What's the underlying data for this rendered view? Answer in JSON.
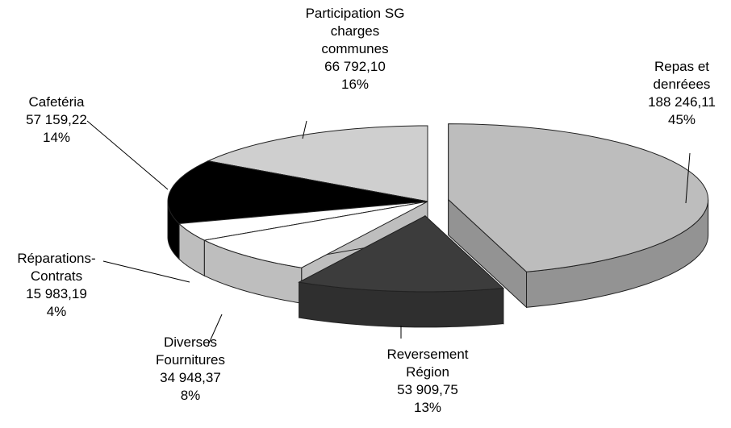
{
  "chart_data": {
    "type": "pie3d",
    "categories": [
      "Repas et\ndenréees",
      "Reversement\nRégion",
      "Diverses\nFournitures",
      "Réparations-\nContrats",
      "Cafetéria",
      "Participation SG\ncharges\ncommunes"
    ],
    "values": [
      188246.11,
      53909.75,
      34948.37,
      15983.19,
      57159.22,
      66792.1
    ],
    "value_labels": [
      "188 246,11",
      "53 909,75",
      "34 948,37",
      "15 983,19",
      "57 159,22",
      "66 792,10"
    ],
    "percents": [
      45,
      13,
      8,
      4,
      14,
      16
    ],
    "percent_labels": [
      "45%",
      "13%",
      "8%",
      "4%",
      "14%",
      "16%"
    ],
    "colors": [
      "#bdbdbd",
      "#3c3c3c",
      "#ffffff",
      "#ffffff",
      "#000000",
      "#cfcfcf"
    ]
  }
}
